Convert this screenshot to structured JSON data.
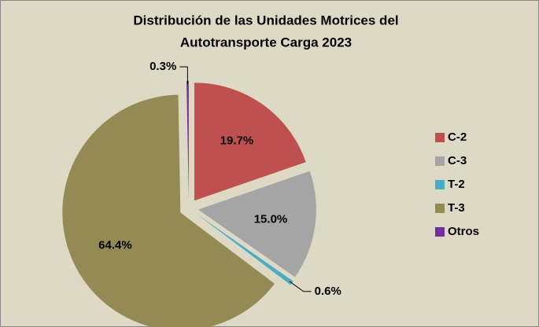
{
  "chart_data": {
    "type": "pie",
    "title": [
      "Distribución de las Unidades Motrices del",
      "Autotransporte Carga 2023"
    ],
    "categories": [
      "C-2",
      "C-3",
      "T-2",
      "T-3",
      "Otros"
    ],
    "values": [
      19.7,
      15.0,
      0.6,
      64.4,
      0.3
    ],
    "value_labels": [
      "19.7%",
      "15.0%",
      "0.6%",
      "64.4%",
      "0.3%"
    ],
    "colors": [
      "#c0504d",
      "#a5a5a5",
      "#4bacc6",
      "#948a54",
      "#7030a0"
    ],
    "legend": "right"
  }
}
